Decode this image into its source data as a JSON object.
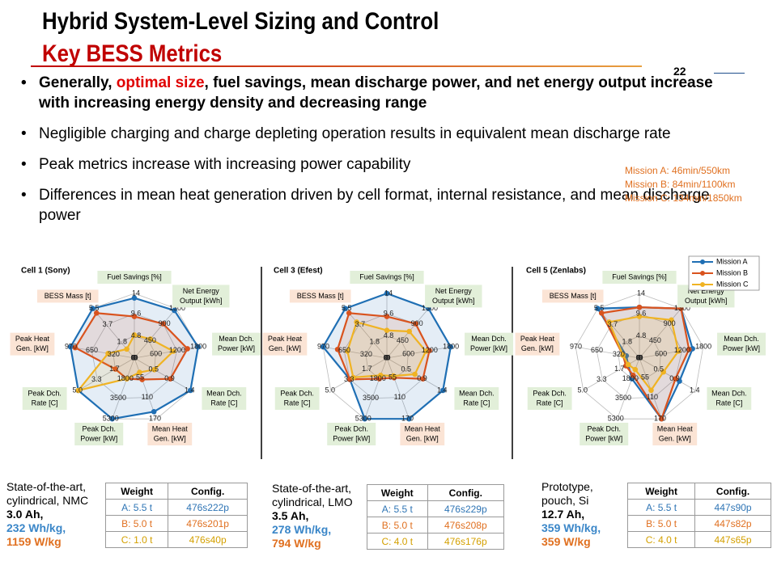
{
  "header": {
    "title": "Hybrid System-Level Sizing and Control",
    "subtitle": "Key BESS Metrics",
    "page_number": "22"
  },
  "bullets": [
    [
      "Generally, ",
      "optimal size",
      ", fuel savings, mean discharge power, and net energy output increase with increasing energy density and decreasing range"
    ],
    [
      "Negligible charging and charge depleting operation results in equivalent mean discharge rate"
    ],
    [
      "Peak metrics increase with increasing power capability"
    ],
    [
      "Differences in mean heat generation driven by cell format, internal resistance, and mean discharge power"
    ]
  ],
  "missions": [
    "Mission A: 46min/550km",
    "Mission B: 84min/1100km",
    "Mission C: 134min/1850km"
  ],
  "chart_data": [
    {
      "type": "radar",
      "title": "Cell 1 (Sony)",
      "legend": false,
      "axes": [
        {
          "label": [
            "Fuel Savings [%]"
          ],
          "kind": "green",
          "lim": [
            0,
            14
          ],
          "ticks": [
            0,
            4.8,
            9.6,
            14
          ]
        },
        {
          "label": [
            "Net Energy",
            "Output [kWh]"
          ],
          "kind": "green",
          "lim": [
            0,
            1300
          ],
          "ticks": [
            0,
            450,
            900,
            1300
          ]
        },
        {
          "label": [
            "Mean Dch.",
            "Power [kW]"
          ],
          "kind": "green",
          "lim": [
            0,
            1800
          ],
          "ticks": [
            0,
            600,
            1200,
            1800
          ]
        },
        {
          "label": [
            "Mean Dch.",
            "Rate [C]"
          ],
          "kind": "green",
          "lim": [
            0,
            1.4
          ],
          "ticks": [
            0,
            0.5,
            0.9,
            1.4
          ]
        },
        {
          "label": [
            "Mean Heat",
            "Gen. [kW]"
          ],
          "kind": "orange",
          "lim": [
            0,
            170
          ],
          "ticks": [
            0,
            55,
            110,
            170
          ]
        },
        {
          "label": [
            "Peak Dch.",
            "Power [kW]"
          ],
          "kind": "green",
          "lim": [
            0,
            5300
          ],
          "ticks": [
            0,
            1800,
            3500,
            5300
          ]
        },
        {
          "label": [
            "Peak Dch.",
            "Rate [C]"
          ],
          "kind": "green",
          "lim": [
            0,
            5.0
          ],
          "ticks": [
            0,
            1.7,
            3.3,
            {
              "value": 5.0,
              "label": "5.0"
            }
          ]
        },
        {
          "label": [
            "Peak Heat",
            "Gen. [kW]"
          ],
          "kind": "orange",
          "lim": [
            0,
            970
          ],
          "ticks": [
            0,
            320,
            650,
            970
          ]
        },
        {
          "label": [
            "BESS Mass [t]"
          ],
          "kind": "orange",
          "lim": [
            0,
            5.5
          ],
          "ticks": [
            0,
            1.8,
            3.7,
            5.5
          ]
        }
      ],
      "series": [
        {
          "name": "Mission A",
          "color": "#1f6fb4",
          "values": [
            13,
            1250,
            1800,
            1.4,
            150,
            5300,
            5.0,
            970,
            5.5
          ]
        },
        {
          "name": "Mission B",
          "color": "#d9531e",
          "values": [
            9,
            900,
            1500,
            0.9,
            60,
            1800,
            1.7,
            900,
            5.0
          ]
        },
        {
          "name": "Mission C",
          "color": "#f0b323",
          "values": [
            5,
            500,
            1100,
            0.5,
            40,
            1800,
            5.0,
            400,
            1.0
          ]
        }
      ]
    },
    {
      "type": "radar",
      "title": "Cell 3 (Efest)",
      "legend": false,
      "axes": [
        {
          "label": [
            "Fuel Savings [%]"
          ],
          "kind": "green",
          "lim": [
            0,
            14
          ],
          "ticks": [
            0,
            4.8,
            9.6,
            14
          ]
        },
        {
          "label": [
            "Net Energy",
            "Output [kWh]"
          ],
          "kind": "green",
          "lim": [
            0,
            1300
          ],
          "ticks": [
            0,
            450,
            900,
            1300
          ]
        },
        {
          "label": [
            "Mean Dch.",
            "Power [kW]"
          ],
          "kind": "green",
          "lim": [
            0,
            1800
          ],
          "ticks": [
            0,
            600,
            1200,
            1800
          ]
        },
        {
          "label": [
            "Mean Dch.",
            "Rate [C]"
          ],
          "kind": "green",
          "lim": [
            0,
            1.4
          ],
          "ticks": [
            0,
            0.5,
            0.9,
            1.4
          ]
        },
        {
          "label": [
            "Mean Heat",
            "Gen. [kW]"
          ],
          "kind": "orange",
          "lim": [
            0,
            170
          ],
          "ticks": [
            0,
            55,
            110,
            170
          ]
        },
        {
          "label": [
            "Peak Dch.",
            "Power [kW]"
          ],
          "kind": "green",
          "lim": [
            0,
            5300
          ],
          "ticks": [
            0,
            1800,
            3500,
            5300
          ]
        },
        {
          "label": [
            "Peak Dch.",
            "Rate [C]"
          ],
          "kind": "green",
          "lim": [
            0,
            5.0
          ],
          "ticks": [
            0,
            1.7,
            3.3,
            {
              "value": 5.0,
              "label": "5.0"
            }
          ]
        },
        {
          "label": [
            "Peak Heat",
            "Gen. [kW]"
          ],
          "kind": "orange",
          "lim": [
            0,
            970
          ],
          "ticks": [
            0,
            320,
            650,
            970
          ]
        },
        {
          "label": [
            "BESS Mass [t]"
          ],
          "kind": "orange",
          "lim": [
            0,
            5.5
          ],
          "ticks": [
            0,
            1.8,
            3.7,
            5.5
          ]
        }
      ],
      "series": [
        {
          "name": "Mission A",
          "color": "#1f6fb4",
          "values": [
            14,
            1300,
            1800,
            1.4,
            170,
            5300,
            3.3,
            970,
            5.5
          ]
        },
        {
          "name": "Mission B",
          "color": "#d9531e",
          "values": [
            9,
            900,
            1200,
            0.9,
            55,
            1800,
            3.3,
            750,
            5.0
          ]
        },
        {
          "name": "Mission C",
          "color": "#f0b323",
          "values": [
            6,
            700,
            1100,
            0.7,
            50,
            1500,
            3.0,
            600,
            4.0
          ]
        }
      ]
    },
    {
      "type": "radar",
      "title": "Cell 5 (Zenlabs)",
      "legend": true,
      "axes": [
        {
          "label": [
            "Fuel Savings [%]"
          ],
          "kind": "green",
          "lim": [
            0,
            14
          ],
          "ticks": [
            0,
            4.8,
            9.6,
            14
          ]
        },
        {
          "label": [
            "Net Energy",
            "Output [kWh]"
          ],
          "kind": "green",
          "lim": [
            0,
            1300
          ],
          "ticks": [
            0,
            450,
            900,
            1300
          ]
        },
        {
          "label": [
            "Mean Dch.",
            "Power [kW]"
          ],
          "kind": "green",
          "lim": [
            0,
            1800
          ],
          "ticks": [
            0,
            600,
            1200,
            1800
          ]
        },
        {
          "label": [
            "Mean Dch.",
            "Rate [C]"
          ],
          "kind": "green",
          "lim": [
            0,
            1.4
          ],
          "ticks": [
            0,
            0.5,
            0.9,
            1.4
          ]
        },
        {
          "label": [
            "Mean Heat",
            "Gen. [kW]"
          ],
          "kind": "orange",
          "lim": [
            0,
            170
          ],
          "ticks": [
            0,
            55,
            110,
            170
          ]
        },
        {
          "label": [
            "Peak Dch.",
            "Power [kW]"
          ],
          "kind": "green",
          "lim": [
            0,
            5300
          ],
          "ticks": [
            0,
            1800,
            3500,
            5300
          ]
        },
        {
          "label": [
            "Peak Dch.",
            "Rate [C]"
          ],
          "kind": "green",
          "lim": [
            0,
            5.0
          ],
          "ticks": [
            0,
            1.7,
            3.3,
            {
              "value": 5.0,
              "label": "5.0"
            }
          ]
        },
        {
          "label": [
            "Peak Heat",
            "Gen. [kW]"
          ],
          "kind": "orange",
          "lim": [
            0,
            970
          ],
          "ticks": [
            0,
            320,
            650,
            970
          ]
        },
        {
          "label": [
            "BESS Mass [t]"
          ],
          "kind": "orange",
          "lim": [
            0,
            5.5
          ],
          "ticks": [
            0,
            1.8,
            3.7,
            5.5
          ]
        }
      ],
      "series": [
        {
          "name": "Mission A",
          "color": "#1f6fb4",
          "values": [
            11,
            1300,
            1500,
            1.0,
            170,
            1800,
            1.0,
            200,
            5.5
          ]
        },
        {
          "name": "Mission B",
          "color": "#d9531e",
          "values": [
            11,
            1300,
            1400,
            0.9,
            170,
            1500,
            1.2,
            250,
            5.0
          ]
        },
        {
          "name": "Mission C",
          "color": "#f0b323",
          "values": [
            9,
            1000,
            1100,
            0.6,
            90,
            1000,
            1.0,
            250,
            4.0
          ]
        }
      ]
    }
  ],
  "cells": [
    {
      "description": [
        "State-of-the-art,",
        "cylindrical, NMC"
      ],
      "capacity": "3.0 Ah,",
      "energy": "232 Wh/kg,",
      "power": "1159 W/kg",
      "table": {
        "header": [
          "Weight",
          "Config."
        ],
        "rows": [
          [
            "A: 5.5 t",
            "476s222p"
          ],
          [
            "B: 5.0 t",
            "476s201p"
          ],
          [
            "C: 1.0 t",
            "476s40p"
          ]
        ]
      }
    },
    {
      "description": [
        "State-of-the-art,",
        "cylindrical, LMO"
      ],
      "capacity": "3.5 Ah,",
      "energy": "278 Wh/kg,",
      "power": "794 W/kg",
      "table": {
        "header": [
          "Weight",
          "Config."
        ],
        "rows": [
          [
            "A: 5.5 t",
            "476s229p"
          ],
          [
            "B: 5.0 t",
            "476s208p"
          ],
          [
            "C: 4.0 t",
            "476s176p"
          ]
        ]
      }
    },
    {
      "description": [
        "Prototype,",
        "pouch, Si"
      ],
      "capacity": "12.7 Ah,",
      "energy": "359 Wh/kg,",
      "power": "359 W/kg",
      "table": {
        "header": [
          "Weight",
          "Config."
        ],
        "rows": [
          [
            "A: 5.5 t",
            "447s90p"
          ],
          [
            "B: 5.0 t",
            "447s82p"
          ],
          [
            "C: 4.0 t",
            "447s65p"
          ]
        ]
      }
    }
  ]
}
